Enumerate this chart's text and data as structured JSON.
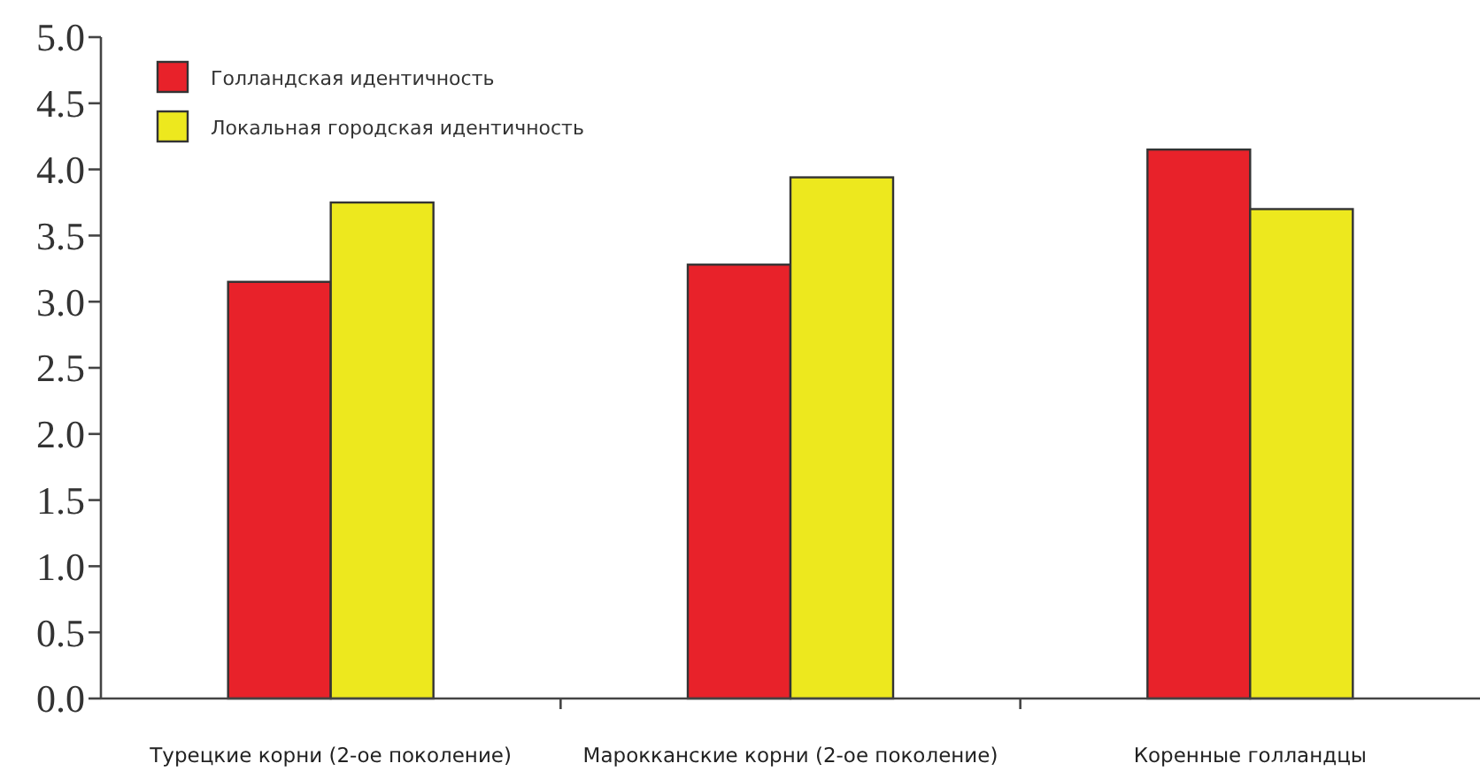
{
  "chart_data": {
    "type": "bar",
    "categories": [
      "Турецкие корни (2-ое поколение)",
      "Марокканские корни (2-ое поколение)",
      "Коренные голландцы"
    ],
    "series": [
      {
        "name": "Голландская идентичность",
        "color": "#e8222a",
        "values": [
          3.15,
          3.28,
          4.15
        ]
      },
      {
        "name": "Локальная городская идентичность",
        "color": "#ede81e",
        "values": [
          3.75,
          3.94,
          3.7
        ]
      }
    ],
    "ylim": [
      0,
      5
    ],
    "yticks": [
      {
        "value": 0,
        "label": "0.0"
      },
      {
        "value": 0.5,
        "label": "0.5"
      },
      {
        "value": 1,
        "label": "1.0"
      },
      {
        "value": 1.5,
        "label": "1.5"
      },
      {
        "value": 2,
        "label": "2.0"
      },
      {
        "value": 2.5,
        "label": "2.5"
      },
      {
        "value": 3,
        "label": "3.0"
      },
      {
        "value": 3.5,
        "label": "3.5"
      },
      {
        "value": 4,
        "label": "4.0"
      },
      {
        "value": 4.5,
        "label": "4.5"
      },
      {
        "value": 5,
        "label": "5.0"
      }
    ],
    "grid": false,
    "legend": "top left"
  }
}
